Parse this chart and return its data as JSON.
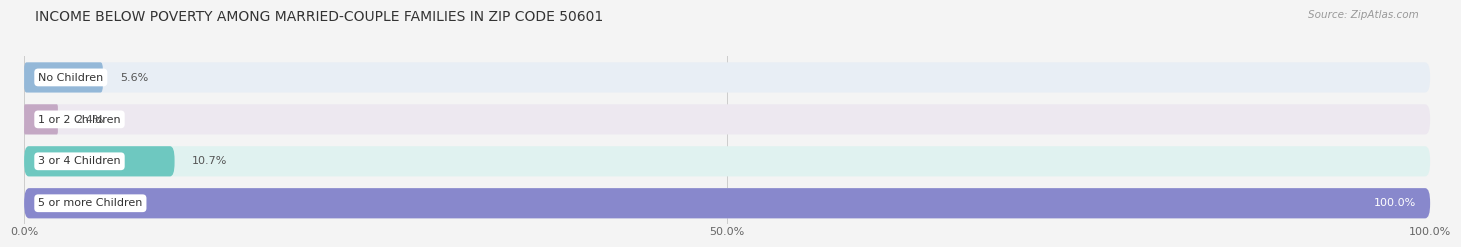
{
  "title": "INCOME BELOW POVERTY AMONG MARRIED-COUPLE FAMILIES IN ZIP CODE 50601",
  "source": "Source: ZipAtlas.com",
  "categories": [
    "No Children",
    "1 or 2 Children",
    "3 or 4 Children",
    "5 or more Children"
  ],
  "values": [
    5.6,
    2.4,
    10.7,
    100.0
  ],
  "bar_colors": [
    "#94b8d8",
    "#c4a8c4",
    "#6ec8c0",
    "#8888cc"
  ],
  "bg_colors": [
    "#e8eef5",
    "#ede8f0",
    "#e0f2f0",
    "#e8e8f0"
  ],
  "xlim": [
    0,
    100
  ],
  "xticks": [
    0.0,
    50.0,
    100.0
  ],
  "xticklabels": [
    "0.0%",
    "50.0%",
    "100.0%"
  ],
  "title_fontsize": 10,
  "source_fontsize": 7.5,
  "bar_label_fontsize": 8,
  "cat_label_fontsize": 8,
  "fig_bg_color": "#f4f4f4",
  "bar_height": 0.72,
  "value_label_inside_threshold": 90
}
